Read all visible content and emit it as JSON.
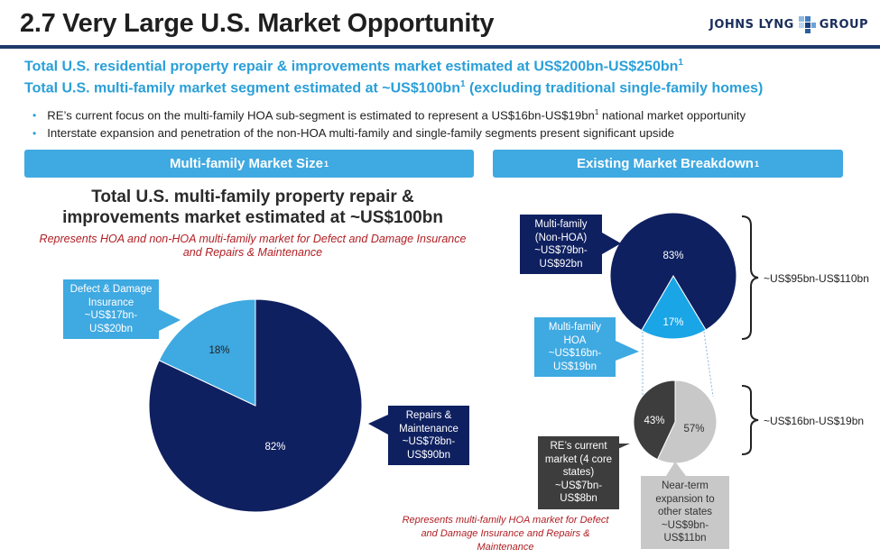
{
  "title": "2.7 Very Large U.S. Market Opportunity",
  "logo_text": "JOHNS LYNG",
  "logo_text2": "GROUP",
  "headline1": "Total U.S. residential property repair & improvements market estimated at US$200bn-US$250bn",
  "headline1_sup": "1",
  "headline2": "Total U.S. multi-family market segment estimated at ~US$100bn",
  "headline2_sup": "1",
  "headline2_tail": " (excluding traditional single-family homes)",
  "bullets": [
    {
      "text": "RE’s current focus on the multi-family HOA sub-segment is estimated to represent a US$16bn-US$19bn",
      "sup": "1",
      "tail": " national market opportunity"
    },
    {
      "text": "Interstate expansion and penetration of the non-HOA multi-family and single-family segments present significant upside",
      "sup": "",
      "tail": ""
    }
  ],
  "banner_left": "Multi-family Market Size",
  "banner_left_sup": "1",
  "banner_right": "Existing Market Breakdown",
  "banner_right_sup": "1",
  "left_title": "Total U.S. multi-family property repair & improvements market estimated at ~US$100bn",
  "left_subtitle": "Represents HOA and non-HOA multi-family market for Defect and Damage Insurance and Repairs & Maintenance",
  "bottom_note": "Represents multi-family HOA market for Defect and Damage Insurance and Repairs & Maintenance",
  "callouts": {
    "defect": "Defect & Damage Insurance ~US$17bn- US$20bn",
    "repairs": "Repairs & Maintenance ~US$78bn- US$90bn",
    "nonhoa": "Multi-family (Non-HOA) ~US$79bn- US$92bn",
    "hoa": "Multi-family HOA ~US$16bn- US$19bn",
    "re_current": "RE’s current market (4 core states) ~US$7bn- US$8bn",
    "near_term": "Near-term expansion to other states ~US$9bn- US$11bn"
  },
  "bracket_labels": {
    "top": "~US$95bn-US$110bn",
    "bottom": "~US$16bn-US$19bn"
  },
  "colors": {
    "navy": "#0f2060",
    "light_blue": "#3fa9e1",
    "bright_blue": "#1aa5e6",
    "dark_gray": "#3d3d3d",
    "light_gray": "#c8c8c8",
    "accent_red": "#b01e23"
  },
  "chart_data": [
    {
      "type": "pie",
      "title": "Multi-family Market Size",
      "categories": [
        "Defect & Damage Insurance",
        "Repairs & Maintenance"
      ],
      "values": [
        18,
        82
      ],
      "labels": [
        "18%",
        "82%"
      ]
    },
    {
      "type": "pie",
      "title": "Existing Market Breakdown",
      "categories": [
        "Multi-family (Non-HOA)",
        "Multi-family HOA"
      ],
      "values": [
        83,
        17
      ],
      "labels": [
        "83%",
        "17%"
      ]
    },
    {
      "type": "pie",
      "categories": [
        "RE’s current market (4 core states)",
        "Near-term expansion to other states"
      ],
      "values": [
        43,
        57
      ],
      "labels": [
        "43%",
        "57%"
      ]
    }
  ]
}
